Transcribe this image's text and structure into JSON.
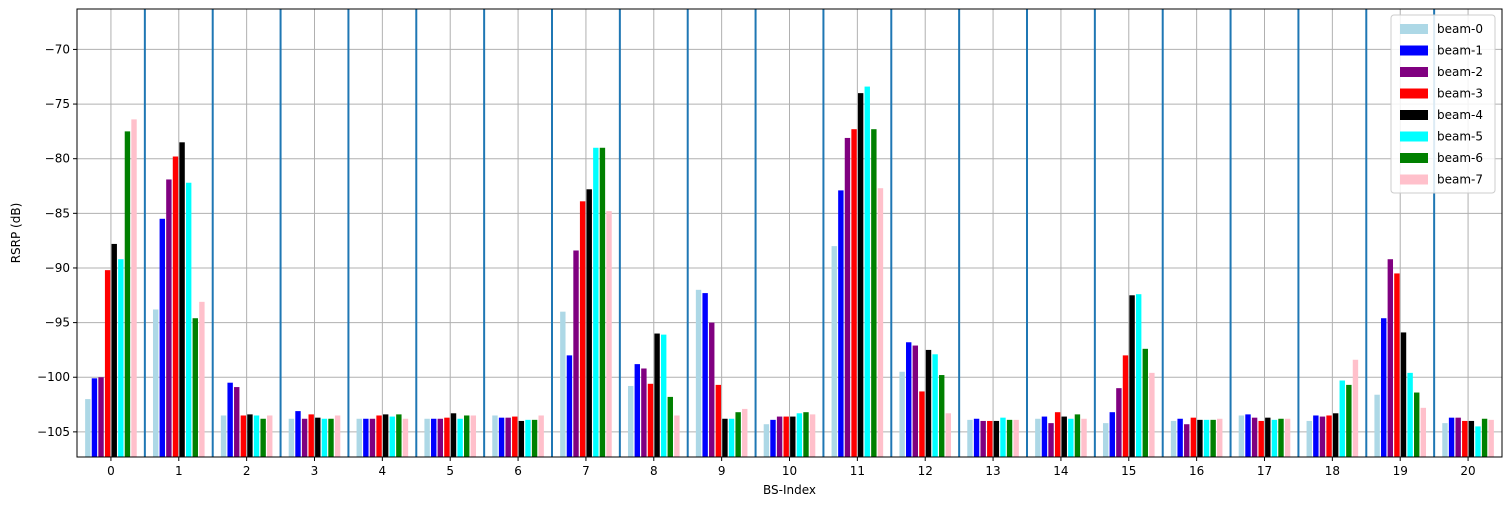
{
  "chart_data": {
    "type": "bar",
    "title": "",
    "xlabel": "BS-Index",
    "ylabel": "RSRP (dB)",
    "ylim": [
      -107.3,
      -66.3
    ],
    "yticks": [
      -70,
      -75,
      -80,
      -85,
      -90,
      -95,
      -100,
      -105
    ],
    "grid": true,
    "legend_position": "top-right",
    "categories": [
      "0",
      "1",
      "2",
      "3",
      "4",
      "5",
      "6",
      "7",
      "8",
      "9",
      "10",
      "11",
      "12",
      "13",
      "14",
      "15",
      "16",
      "17",
      "18",
      "19",
      "20"
    ],
    "series": [
      {
        "name": "beam-0",
        "color": "#add8e6",
        "values": [
          -102.0,
          -93.8,
          -103.5,
          -103.8,
          -103.8,
          -103.8,
          -103.5,
          -94.0,
          -100.8,
          -92.0,
          -104.3,
          -88.0,
          -99.5,
          -103.9,
          -103.8,
          -104.2,
          -104.0,
          -103.5,
          -104.0,
          -101.6,
          -104.2
        ]
      },
      {
        "name": "beam-1",
        "color": "#0000ff",
        "values": [
          -100.1,
          -85.5,
          -100.5,
          -103.1,
          -103.8,
          -103.8,
          -103.7,
          -98.0,
          -98.8,
          -92.3,
          -103.9,
          -82.9,
          -96.8,
          -103.8,
          -103.6,
          -103.2,
          -103.8,
          -103.4,
          -103.5,
          -94.6,
          -103.7
        ]
      },
      {
        "name": "beam-2",
        "color": "#800080",
        "values": [
          -100.0,
          -81.9,
          -100.9,
          -103.8,
          -103.8,
          -103.8,
          -103.7,
          -88.4,
          -99.2,
          -95.0,
          -103.6,
          -78.1,
          -97.1,
          -104.0,
          -104.2,
          -101.0,
          -104.3,
          -103.7,
          -103.6,
          -89.2,
          -103.7
        ]
      },
      {
        "name": "beam-3",
        "color": "#ff0000",
        "values": [
          -90.2,
          -79.8,
          -103.5,
          -103.4,
          -103.5,
          -103.7,
          -103.6,
          -83.9,
          -100.6,
          -100.7,
          -103.6,
          -77.3,
          -101.3,
          -104.0,
          -103.2,
          -98.0,
          -103.7,
          -104.0,
          -103.5,
          -90.5,
          -104.0
        ]
      },
      {
        "name": "beam-4",
        "color": "#000000",
        "values": [
          -87.8,
          -78.5,
          -103.4,
          -103.7,
          -103.4,
          -103.3,
          -104.0,
          -82.8,
          -96.0,
          -103.8,
          -103.6,
          -74.0,
          -97.5,
          -104.0,
          -103.6,
          -92.5,
          -103.9,
          -103.7,
          -103.3,
          -95.9,
          -104.0
        ]
      },
      {
        "name": "beam-5",
        "color": "#00ffff",
        "values": [
          -89.2,
          -82.2,
          -103.5,
          -103.8,
          -103.6,
          -103.8,
          -103.9,
          -79.0,
          -96.1,
          -103.8,
          -103.3,
          -73.4,
          -97.9,
          -103.7,
          -103.8,
          -92.4,
          -103.9,
          -103.9,
          -100.3,
          -99.6,
          -104.5
        ]
      },
      {
        "name": "beam-6",
        "color": "#008000",
        "values": [
          -77.5,
          -94.6,
          -103.8,
          -103.8,
          -103.4,
          -103.5,
          -103.9,
          -79.0,
          -101.8,
          -103.2,
          -103.2,
          -77.3,
          -99.8,
          -103.9,
          -103.4,
          -97.4,
          -103.9,
          -103.8,
          -100.7,
          -101.4,
          -103.8
        ]
      },
      {
        "name": "beam-7",
        "color": "#ffc0cb",
        "values": [
          -76.4,
          -93.1,
          -103.5,
          -103.5,
          -103.8,
          -103.5,
          -103.5,
          -84.8,
          -103.5,
          -102.9,
          -103.4,
          -82.7,
          -103.3,
          -103.9,
          -103.8,
          -99.6,
          -103.8,
          -103.8,
          -98.4,
          -102.8,
          -103.9
        ]
      }
    ]
  }
}
